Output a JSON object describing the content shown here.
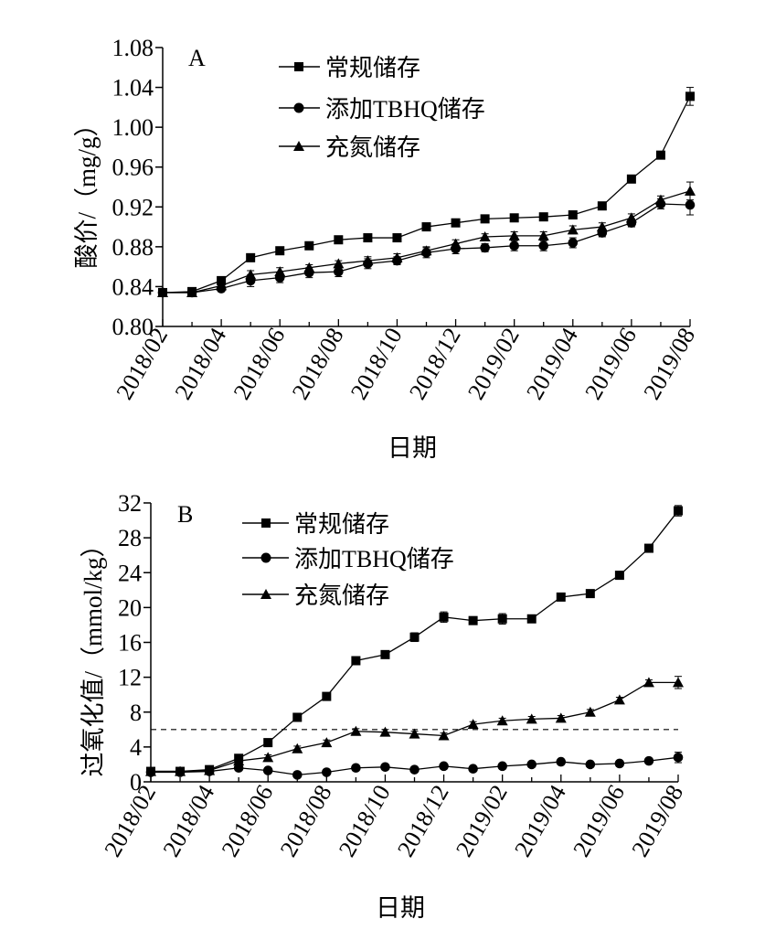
{
  "chart_data": [
    {
      "type": "line",
      "panel_label": "A",
      "xlabel": "日期",
      "ylabel": "酸价/（mg/g）",
      "x_ticks": [
        "2018/02",
        "2018/04",
        "2018/06",
        "2018/08",
        "2018/10",
        "2018/12",
        "2019/02",
        "2019/04",
        "2019/06",
        "2019/08"
      ],
      "x": [
        "2018/02",
        "2018/03",
        "2018/04",
        "2018/05",
        "2018/06",
        "2018/07",
        "2018/08",
        "2018/09",
        "2018/10",
        "2018/11",
        "2018/12",
        "2019/01",
        "2019/02",
        "2019/03",
        "2019/04",
        "2019/05",
        "2019/06",
        "2019/07",
        "2019/08"
      ],
      "ylim": [
        0.8,
        1.08
      ],
      "y_ticks": [
        "0.80",
        "0.84",
        "0.88",
        "0.92",
        "0.96",
        "1.00",
        "1.04",
        "1.08"
      ],
      "legend_position": "top-center",
      "series": [
        {
          "name": "常规储存",
          "marker": "square",
          "values": [
            0.834,
            0.835,
            0.846,
            0.869,
            0.876,
            0.881,
            0.887,
            0.889,
            0.889,
            0.9,
            0.904,
            0.908,
            0.909,
            0.91,
            0.912,
            0.921,
            0.948,
            0.972,
            1.031
          ],
          "errors": [
            0.002,
            0.002,
            0.003,
            0.003,
            0.002,
            0.002,
            0.002,
            0.002,
            0.002,
            0.003,
            0.002,
            0.002,
            0.003,
            0.002,
            0.002,
            0.002,
            0.002,
            0.003,
            0.009
          ]
        },
        {
          "name": "添加TBHQ储存",
          "marker": "circle",
          "values": [
            0.834,
            0.834,
            0.838,
            0.846,
            0.849,
            0.854,
            0.855,
            0.863,
            0.866,
            0.874,
            0.878,
            0.879,
            0.881,
            0.881,
            0.884,
            0.894,
            0.904,
            0.923,
            0.922
          ],
          "errors": [
            0.002,
            0.002,
            0.003,
            0.006,
            0.005,
            0.005,
            0.005,
            0.005,
            0.004,
            0.005,
            0.005,
            0.004,
            0.005,
            0.005,
            0.005,
            0.004,
            0.004,
            0.005,
            0.01
          ]
        },
        {
          "name": "充氮储存",
          "marker": "triangle",
          "values": [
            0.834,
            0.834,
            0.841,
            0.852,
            0.855,
            0.859,
            0.863,
            0.866,
            0.869,
            0.876,
            0.883,
            0.89,
            0.891,
            0.891,
            0.897,
            0.9,
            0.909,
            0.927,
            0.936
          ],
          "errors": [
            0.002,
            0.002,
            0.003,
            0.004,
            0.004,
            0.003,
            0.003,
            0.004,
            0.004,
            0.004,
            0.004,
            0.003,
            0.004,
            0.004,
            0.004,
            0.004,
            0.004,
            0.004,
            0.009
          ]
        }
      ]
    },
    {
      "type": "line",
      "panel_label": "B",
      "xlabel": "日期",
      "ylabel": "过氧化值/（mmol/kg）",
      "x_ticks": [
        "2018/02",
        "2018/04",
        "2018/06",
        "2018/08",
        "2018/10",
        "2018/12",
        "2019/02",
        "2019/04",
        "2019/06",
        "2019/08"
      ],
      "x": [
        "2018/02",
        "2018/03",
        "2018/04",
        "2018/05",
        "2018/06",
        "2018/07",
        "2018/08",
        "2018/09",
        "2018/10",
        "2018/11",
        "2018/12",
        "2019/01",
        "2019/02",
        "2019/03",
        "2019/04",
        "2019/05",
        "2019/06",
        "2019/07",
        "2019/08"
      ],
      "ylim": [
        0,
        32
      ],
      "y_ticks": [
        "0",
        "4",
        "8",
        "12",
        "16",
        "20",
        "24",
        "28",
        "32"
      ],
      "reference_line_y": 6,
      "legend_position": "top-center",
      "series": [
        {
          "name": "常规储存",
          "marker": "square",
          "values": [
            1.2,
            1.2,
            1.4,
            2.7,
            4.5,
            7.4,
            9.8,
            13.9,
            14.6,
            16.6,
            18.9,
            18.5,
            18.7,
            18.7,
            21.2,
            21.6,
            23.7,
            26.8,
            31.1
          ],
          "errors": [
            0.2,
            0.2,
            0.2,
            0.3,
            0.3,
            0.3,
            0.3,
            0.3,
            0.3,
            0.5,
            0.6,
            0.4,
            0.6,
            0.3,
            0.3,
            0.3,
            0.3,
            0.3,
            0.6
          ]
        },
        {
          "name": "添加TBHQ储存",
          "marker": "circle",
          "values": [
            1.1,
            1.1,
            1.2,
            1.6,
            1.3,
            0.8,
            1.1,
            1.6,
            1.7,
            1.4,
            1.8,
            1.5,
            1.8,
            2.0,
            2.3,
            2.0,
            2.1,
            2.4,
            2.8
          ],
          "errors": [
            0.2,
            0.2,
            0.2,
            0.2,
            0.3,
            0.2,
            0.2,
            0.2,
            0.2,
            0.2,
            0.2,
            0.2,
            0.2,
            0.2,
            0.2,
            0.2,
            0.2,
            0.2,
            0.6
          ]
        },
        {
          "name": "充氮储存",
          "marker": "triangle",
          "values": [
            1.2,
            1.2,
            1.3,
            2.4,
            2.8,
            3.8,
            4.5,
            5.8,
            5.7,
            5.5,
            5.3,
            6.6,
            7.0,
            7.2,
            7.3,
            8.0,
            9.4,
            11.4,
            11.4
          ],
          "errors": [
            0.2,
            0.2,
            0.2,
            0.3,
            0.3,
            0.3,
            0.3,
            0.3,
            0.3,
            0.3,
            0.3,
            0.3,
            0.3,
            0.3,
            0.3,
            0.3,
            0.3,
            0.3,
            0.7
          ]
        }
      ]
    }
  ]
}
